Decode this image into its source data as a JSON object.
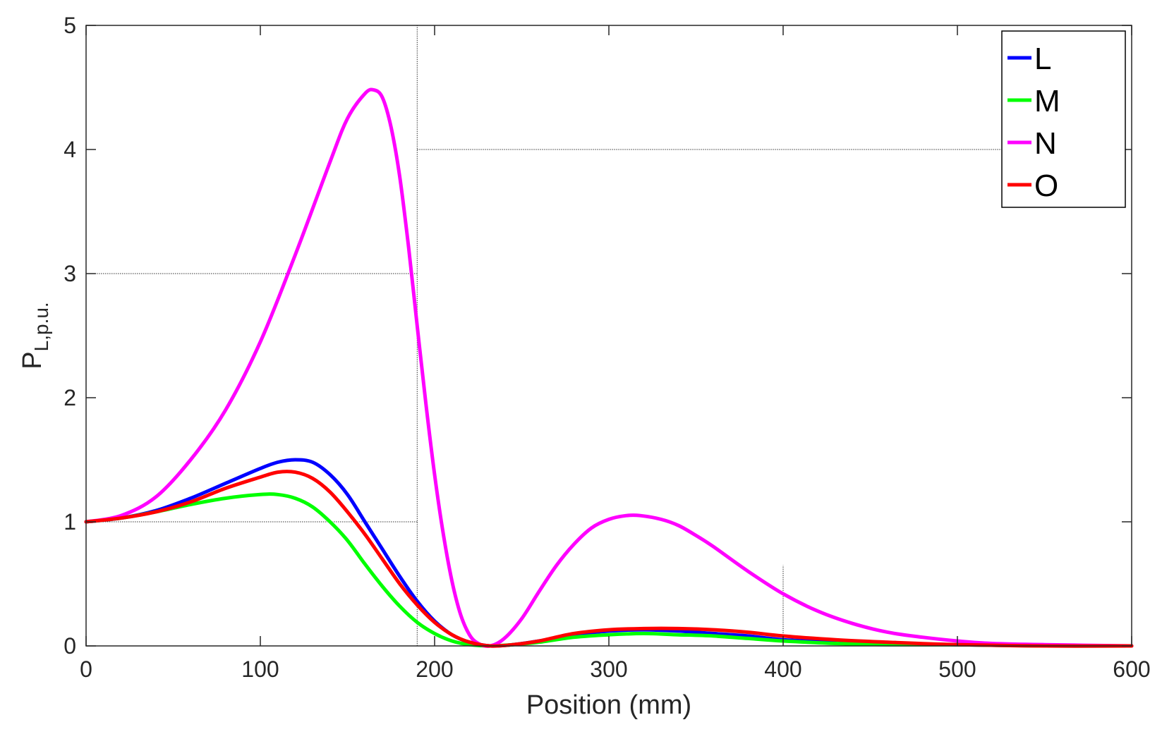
{
  "chart_data": {
    "type": "line",
    "title": "",
    "xlabel": "Position (mm)",
    "ylabel": {
      "main": "P",
      "sub": "L,p.u."
    },
    "xlim": [
      0,
      600
    ],
    "ylim": [
      0,
      5
    ],
    "xticks": [
      0,
      100,
      200,
      300,
      400,
      500,
      600
    ],
    "yticks": [
      0,
      1,
      2,
      3,
      4,
      5
    ],
    "grid": false,
    "legend_position": "top-right",
    "series": [
      {
        "name": "L",
        "color": "#0000ff",
        "x": [
          0,
          20,
          40,
          60,
          80,
          100,
          110,
          120,
          130,
          140,
          150,
          160,
          170,
          180,
          190,
          200,
          210,
          220,
          232,
          245,
          260,
          280,
          300,
          320,
          340,
          360,
          380,
          400,
          430,
          460,
          500,
          550,
          600
        ],
        "y": [
          1.0,
          1.03,
          1.09,
          1.19,
          1.31,
          1.43,
          1.48,
          1.5,
          1.48,
          1.38,
          1.22,
          1.0,
          0.78,
          0.56,
          0.36,
          0.2,
          0.09,
          0.03,
          0.0,
          0.01,
          0.04,
          0.09,
          0.12,
          0.13,
          0.12,
          0.1,
          0.08,
          0.05,
          0.03,
          0.02,
          0.01,
          0.0,
          0.0
        ]
      },
      {
        "name": "M",
        "color": "#00ff00",
        "x": [
          0,
          20,
          40,
          60,
          80,
          100,
          110,
          120,
          130,
          140,
          150,
          160,
          170,
          180,
          190,
          200,
          210,
          220,
          232,
          245,
          260,
          280,
          300,
          320,
          340,
          360,
          380,
          400,
          430,
          460,
          500,
          550,
          600
        ],
        "y": [
          1.0,
          1.03,
          1.08,
          1.14,
          1.19,
          1.22,
          1.22,
          1.19,
          1.12,
          1.0,
          0.85,
          0.66,
          0.48,
          0.32,
          0.19,
          0.1,
          0.04,
          0.01,
          0.0,
          0.01,
          0.03,
          0.07,
          0.09,
          0.1,
          0.09,
          0.08,
          0.06,
          0.04,
          0.02,
          0.01,
          0.01,
          0.0,
          0.0
        ]
      },
      {
        "name": "N",
        "color": "#ff00ff",
        "x": [
          0,
          20,
          40,
          60,
          80,
          100,
          120,
          140,
          150,
          160,
          165,
          170,
          175,
          180,
          185,
          190,
          195,
          200,
          205,
          210,
          215,
          220,
          225,
          232,
          240,
          250,
          260,
          270,
          280,
          290,
          300,
          310,
          318,
          330,
          340,
          350,
          360,
          380,
          400,
          420,
          440,
          460,
          480,
          500,
          520,
          550,
          600
        ],
        "y": [
          1.0,
          1.05,
          1.2,
          1.5,
          1.9,
          2.45,
          3.15,
          3.9,
          4.25,
          4.45,
          4.48,
          4.42,
          4.18,
          3.78,
          3.22,
          2.58,
          1.95,
          1.38,
          0.9,
          0.52,
          0.25,
          0.09,
          0.02,
          0.0,
          0.06,
          0.22,
          0.44,
          0.65,
          0.82,
          0.95,
          1.02,
          1.05,
          1.05,
          1.02,
          0.97,
          0.89,
          0.8,
          0.6,
          0.42,
          0.28,
          0.18,
          0.11,
          0.07,
          0.04,
          0.02,
          0.01,
          0.0
        ]
      },
      {
        "name": "O",
        "color": "#ff0000",
        "x": [
          0,
          20,
          40,
          60,
          80,
          100,
          110,
          120,
          130,
          140,
          150,
          160,
          170,
          180,
          190,
          200,
          210,
          220,
          232,
          245,
          260,
          280,
          300,
          320,
          340,
          360,
          380,
          400,
          430,
          460,
          500,
          550,
          600
        ],
        "y": [
          1.0,
          1.03,
          1.08,
          1.16,
          1.27,
          1.36,
          1.4,
          1.4,
          1.35,
          1.24,
          1.08,
          0.9,
          0.7,
          0.5,
          0.33,
          0.19,
          0.09,
          0.03,
          0.0,
          0.01,
          0.04,
          0.1,
          0.13,
          0.14,
          0.14,
          0.13,
          0.11,
          0.08,
          0.05,
          0.03,
          0.01,
          0.0,
          0.0
        ]
      }
    ],
    "annotation_lines": [
      {
        "x": [
          0,
          190
        ],
        "y": [
          1,
          1
        ]
      },
      {
        "x": [
          0,
          190
        ],
        "y": [
          3,
          3
        ]
      },
      {
        "x": [
          190,
          600
        ],
        "y": [
          4,
          4
        ]
      },
      {
        "x": [
          190,
          190
        ],
        "y": [
          0,
          5
        ]
      },
      {
        "x": [
          400,
          400
        ],
        "y": [
          0,
          0.65
        ]
      }
    ]
  }
}
